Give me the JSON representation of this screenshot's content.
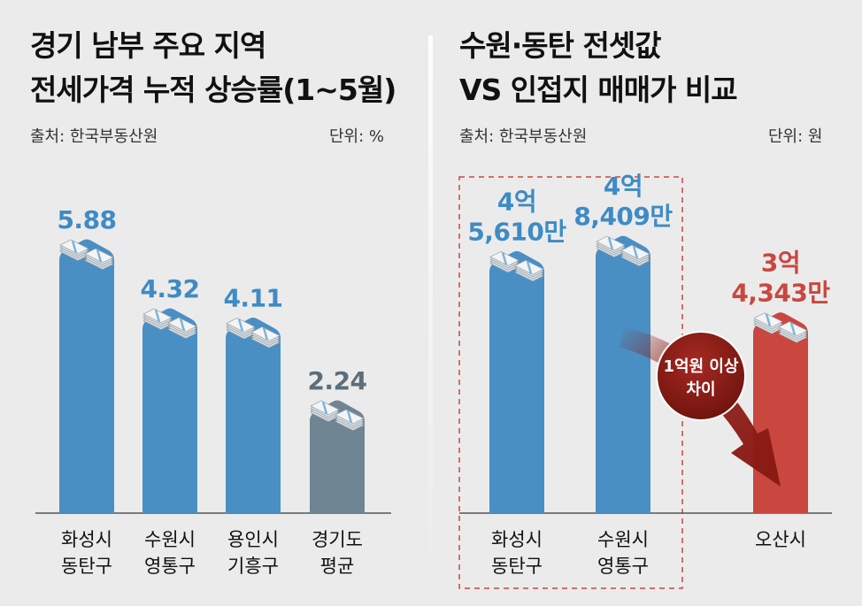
{
  "left": {
    "title_lines": [
      "경기 남부 주요 지역",
      "전세가격 누적 상승률(1~5월)"
    ],
    "source": "출처: 한국부동산원",
    "unit": "단위: %",
    "chart_data": {
      "type": "bar",
      "title": "경기 남부 주요 지역 전세가격 누적 상승률(1~5월)",
      "categories": [
        [
          "화성시",
          "동탄구"
        ],
        [
          "수원시",
          "영통구"
        ],
        [
          "용인시",
          "기흥구"
        ],
        [
          "경기도",
          "평균"
        ]
      ],
      "values": [
        5.88,
        4.32,
        4.11,
        2.24
      ],
      "value_labels": [
        [
          "5.88"
        ],
        [
          "4.32"
        ],
        [
          "4.11"
        ],
        [
          "2.24"
        ]
      ],
      "colors": [
        "#4a8fc4",
        "#4a8fc4",
        "#4a8fc4",
        "#6f8594"
      ],
      "label_colors": [
        "#3e8bc5",
        "#3e8bc5",
        "#3e8bc5",
        "#5a6e7b"
      ],
      "ylim": [
        0,
        6.4
      ]
    }
  },
  "right": {
    "title_lines": [
      "수원·동탄 전셋값",
      "VS 인접지 매매가 비교"
    ],
    "source": "출처: 한국부동산원",
    "unit": "단위: 원",
    "chart_data": {
      "type": "bar",
      "title": "수원·동탄 전셋값 VS 인접지 매매가 비교",
      "categories": [
        [
          "화성시",
          "동탄구"
        ],
        [
          "수원시",
          "영통구"
        ],
        [
          "오산시"
        ]
      ],
      "values": [
        456100000,
        484090000,
        343430000
      ],
      "value_labels": [
        [
          "4억",
          "5,610만"
        ],
        [
          "4억",
          "8,409만"
        ],
        [
          "3억",
          "4,343만"
        ]
      ],
      "colors": [
        "#4a8fc4",
        "#4a8fc4",
        "#c9473f"
      ],
      "label_colors": [
        "#3e8bc5",
        "#3e8bc5",
        "#c9473f"
      ],
      "ylim": [
        0,
        520000000
      ],
      "annotation": [
        "1억원 이상",
        "차이"
      ]
    }
  }
}
